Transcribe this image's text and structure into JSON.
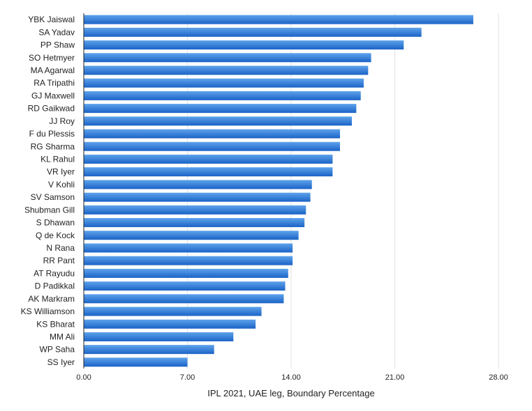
{
  "chart_data": {
    "type": "bar",
    "orientation": "horizontal",
    "categories": [
      "YBK Jaiswal",
      "SA Yadav",
      "PP Shaw",
      "SO Hetmyer",
      "MA Agarwal",
      "RA Tripathi",
      "GJ Maxwell",
      "RD Gaikwad",
      "JJ Roy",
      "F du Plessis",
      "RG Sharma",
      "KL Rahul",
      "VR Iyer",
      "V Kohli",
      "SV Samson",
      "Shubman Gill",
      "S Dhawan",
      "Q de Kock",
      "N Rana",
      "RR Pant",
      "AT Rayudu",
      "D Padikkal",
      "AK Markram",
      "KS Williamson",
      "KS Bharat",
      "MM Ali",
      "WP Saha",
      "SS Iyer"
    ],
    "values": [
      26.3,
      22.8,
      21.6,
      19.4,
      19.2,
      18.9,
      18.7,
      18.4,
      18.1,
      17.3,
      17.3,
      16.8,
      16.8,
      15.4,
      15.3,
      15.0,
      14.9,
      14.5,
      14.1,
      14.1,
      13.8,
      13.6,
      13.5,
      12.0,
      11.6,
      10.1,
      8.8,
      7.0
    ],
    "xlabel": "IPL 2021, UAE leg, Boundary Percentage",
    "xlim": [
      0,
      28
    ],
    "xticks": [
      0,
      7,
      14,
      21,
      28
    ],
    "xtick_labels": [
      "0.00",
      "7.00",
      "14.00",
      "21.00",
      "28.00"
    ],
    "grid": "vertical",
    "legend": "none",
    "bar_color_top": "#5ea3ec",
    "bar_color_bottom": "#1b63c6"
  }
}
